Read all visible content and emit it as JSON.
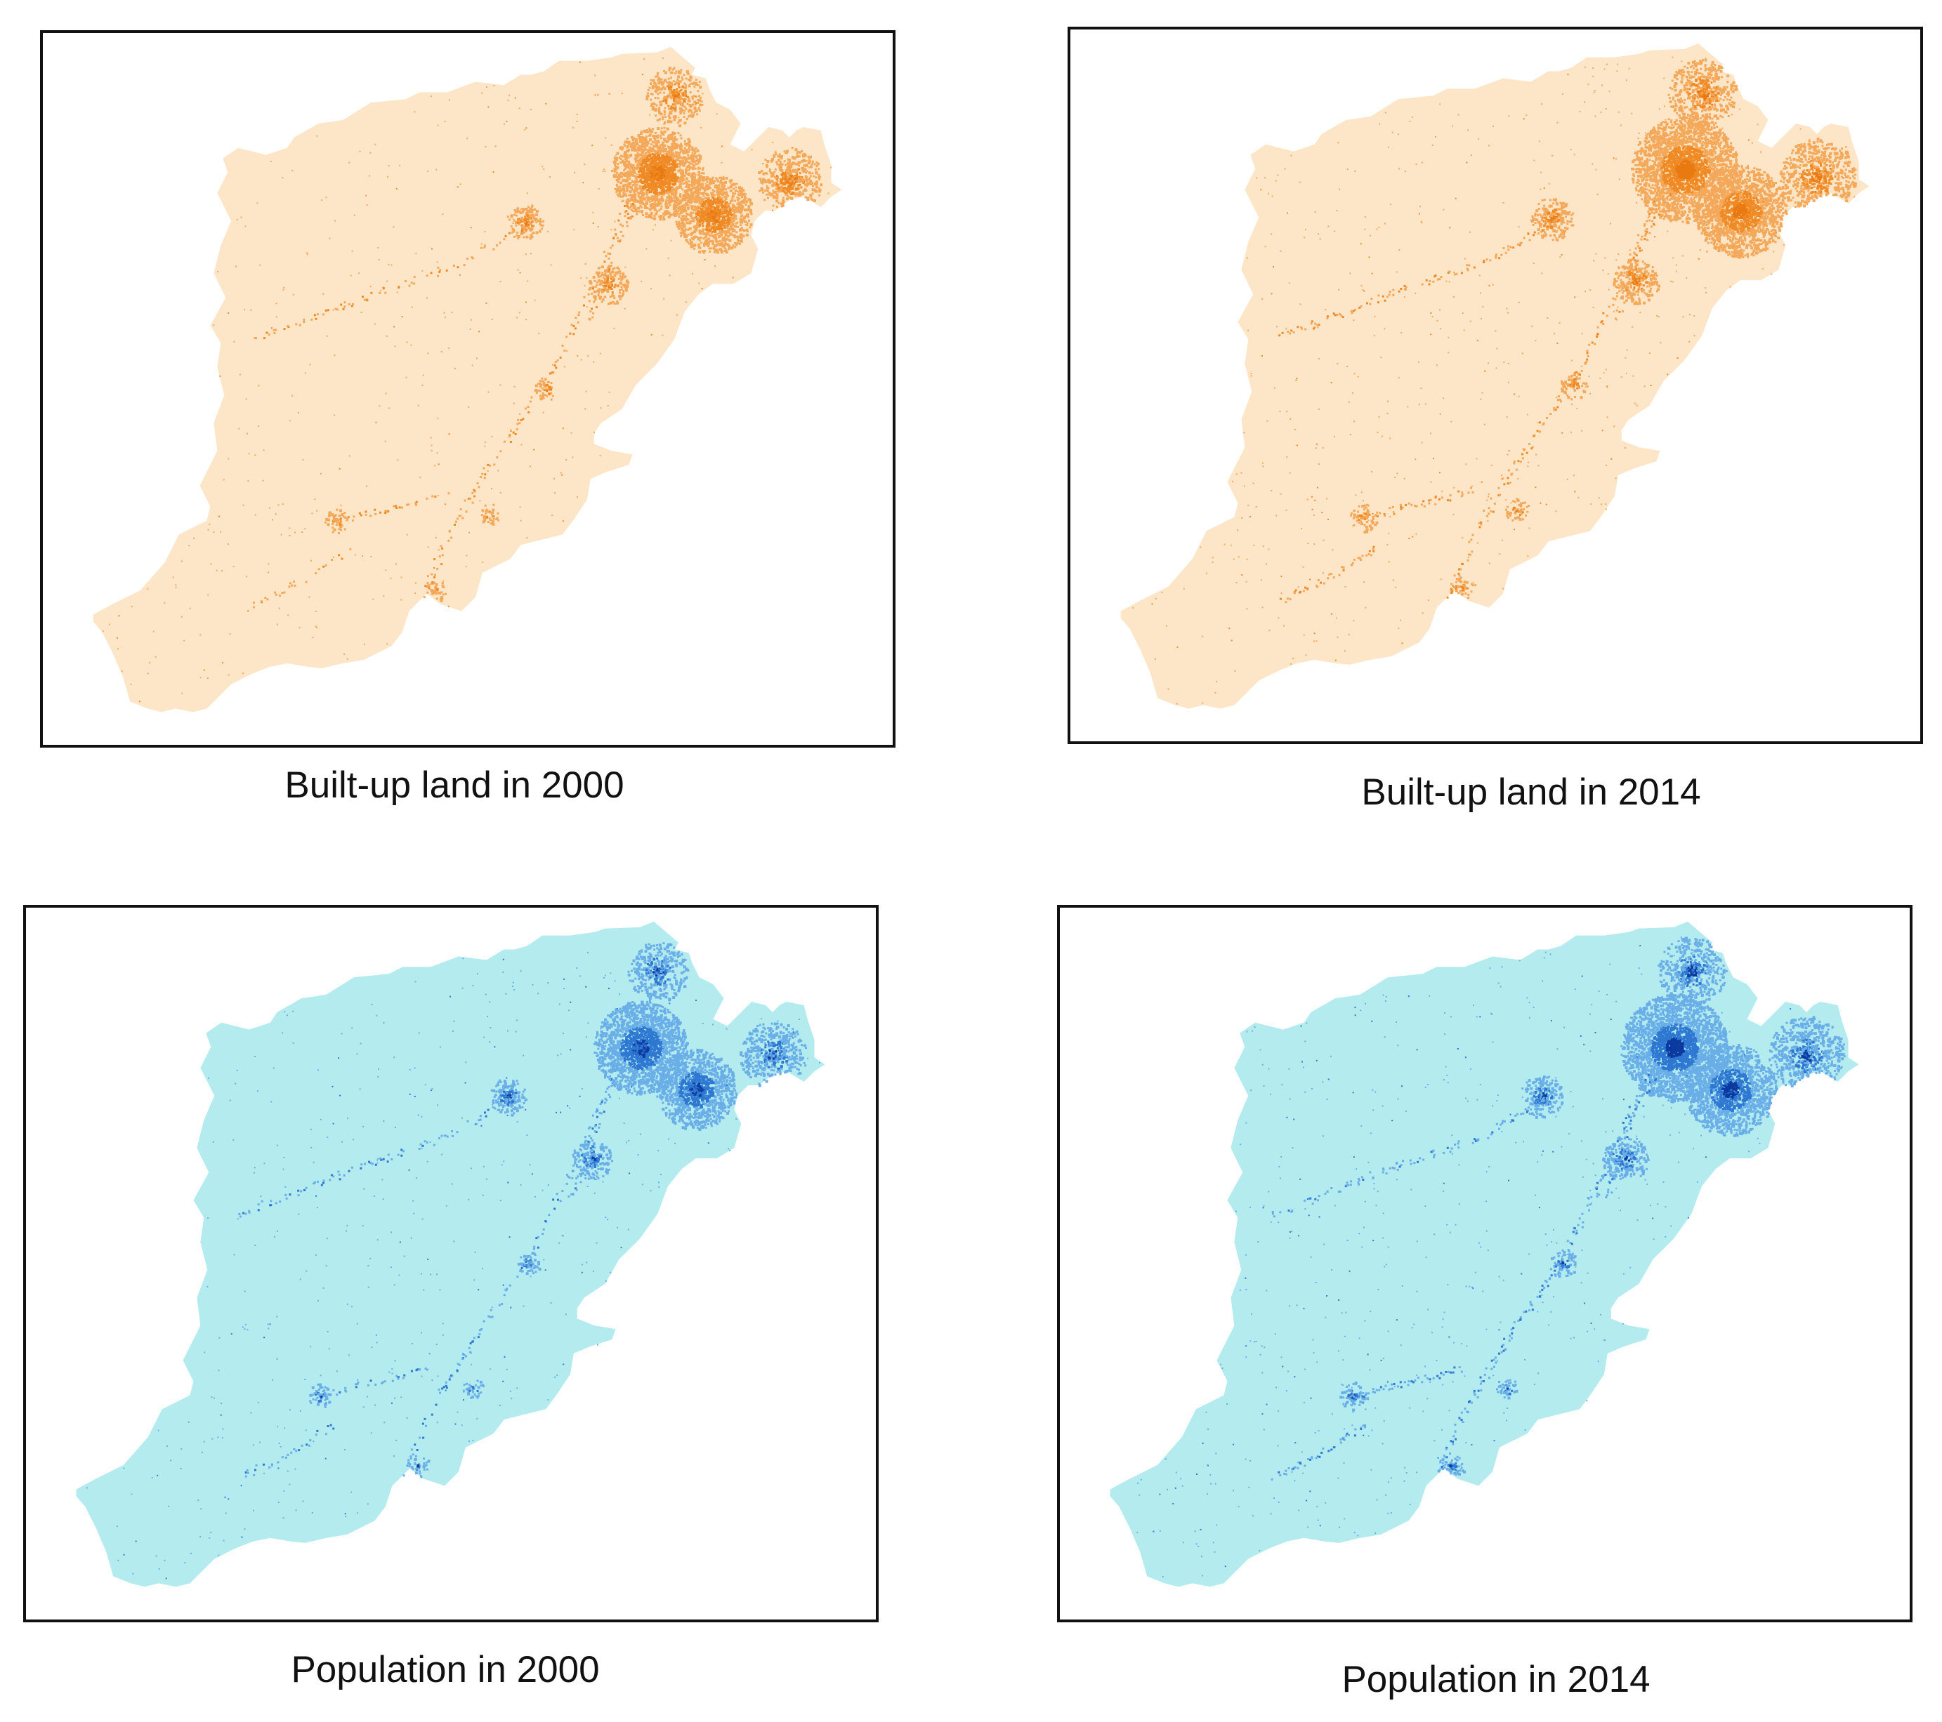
{
  "panels": [
    {
      "caption": "Built-up land in 2000",
      "year": "2000",
      "variable": "built-up land",
      "colors": {
        "base": "#fde6c8",
        "low": "#f4a85a",
        "mid": "#ef8a25",
        "high": "#e97a12"
      },
      "intensity": 0.55
    },
    {
      "caption": "Built-up land in 2014",
      "year": "2014",
      "variable": "built-up land",
      "colors": {
        "base": "#fde6c8",
        "low": "#f4a85a",
        "mid": "#ef8a25",
        "high": "#e97a12"
      },
      "intensity": 1.0
    },
    {
      "caption": "Population in 2000",
      "year": "2000",
      "variable": "population",
      "colors": {
        "base": "#b4ebef",
        "low": "#6aaee8",
        "mid": "#2e78d2",
        "high": "#0b3aa0"
      },
      "intensity": 0.6
    },
    {
      "caption": "Population in 2014",
      "year": "2014",
      "variable": "population",
      "colors": {
        "base": "#b4ebef",
        "low": "#6aaee8",
        "mid": "#2e78d2",
        "high": "#0b3aa0"
      },
      "intensity": 1.0
    }
  ]
}
